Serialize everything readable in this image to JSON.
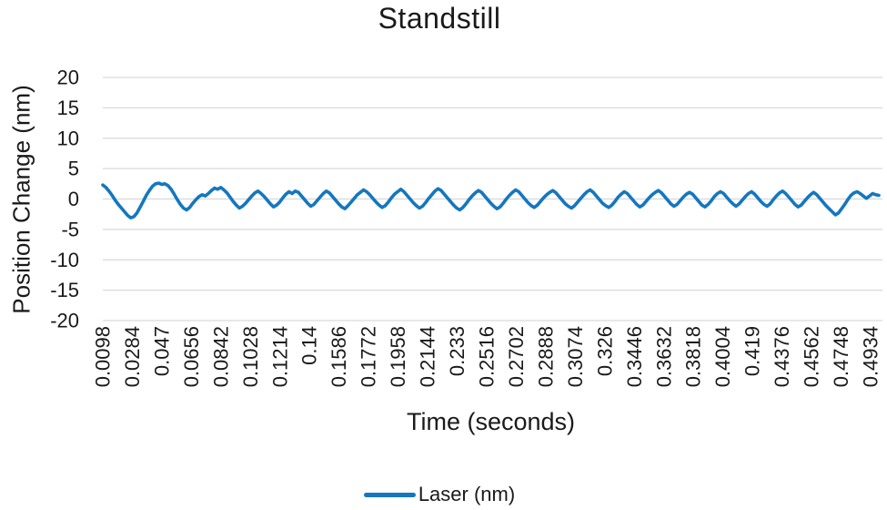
{
  "chart_data": {
    "type": "line",
    "title": "Standstill",
    "xlabel": "Time (seconds)",
    "ylabel": "Position Change (nm)",
    "ylim": [
      -20,
      20
    ],
    "ytick_step": 5,
    "yticks": [
      20,
      15,
      10,
      5,
      0,
      -5,
      -10,
      -15,
      -20
    ],
    "xticks": [
      "0.0098",
      "0.0284",
      "0.047",
      "0.0656",
      "0.0842",
      "0.1028",
      "0.1214",
      "0.14",
      "0.1586",
      "0.1772",
      "0.1958",
      "0.2144",
      "0.233",
      "0.2516",
      "0.2702",
      "0.2888",
      "0.3074",
      "0.326",
      "0.3446",
      "0.3632",
      "0.3818",
      "0.4004",
      "0.419",
      "0.4376",
      "0.4562",
      "0.4748",
      "0.4934"
    ],
    "x_range_seconds": [
      0,
      0.5
    ],
    "grid": "horizontal",
    "grid_color": "#d9d9d9",
    "legend": {
      "position": "bottom",
      "entries": [
        {
          "label": "Laser (nm)",
          "color": "#1577be"
        }
      ]
    },
    "series": [
      {
        "name": "Laser (nm)",
        "color": "#1577be",
        "sample_interval_seconds": 0.002,
        "values": [
          2.3,
          1.9,
          1.3,
          0.6,
          -0.2,
          -0.9,
          -1.5,
          -2.1,
          -2.7,
          -3.1,
          -2.9,
          -2.3,
          -1.4,
          -0.4,
          0.6,
          1.4,
          2.1,
          2.5,
          2.6,
          2.4,
          2.5,
          2.2,
          1.6,
          0.8,
          -0.1,
          -0.9,
          -1.5,
          -1.8,
          -1.4,
          -0.7,
          -0.1,
          0.4,
          0.7,
          0.5,
          0.9,
          1.4,
          1.8,
          1.6,
          1.9,
          1.5,
          1.0,
          0.3,
          -0.4,
          -1.0,
          -1.5,
          -1.2,
          -0.7,
          -0.1,
          0.5,
          1.0,
          1.3,
          0.9,
          0.4,
          -0.2,
          -0.8,
          -1.3,
          -1.0,
          -0.5,
          0.2,
          0.8,
          1.2,
          0.9,
          1.3,
          1.1,
          0.5,
          -0.1,
          -0.7,
          -1.2,
          -0.9,
          -0.3,
          0.3,
          0.9,
          1.3,
          1.0,
          0.4,
          -0.2,
          -0.8,
          -1.3,
          -1.6,
          -1.1,
          -0.5,
          0.1,
          0.7,
          1.1,
          1.5,
          1.2,
          0.7,
          0.1,
          -0.5,
          -1.0,
          -1.4,
          -1.1,
          -0.5,
          0.2,
          0.8,
          1.2,
          1.6,
          1.2,
          0.6,
          0.0,
          -0.6,
          -1.1,
          -1.5,
          -1.2,
          -0.6,
          0.1,
          0.7,
          1.3,
          1.7,
          1.4,
          0.8,
          0.2,
          -0.4,
          -1.0,
          -1.5,
          -1.8,
          -1.4,
          -0.8,
          -0.1,
          0.5,
          1.0,
          1.4,
          1.1,
          0.5,
          -0.1,
          -0.7,
          -1.2,
          -1.6,
          -1.3,
          -0.7,
          0.0,
          0.6,
          1.1,
          1.5,
          1.2,
          0.6,
          0.0,
          -0.6,
          -1.1,
          -1.4,
          -1.0,
          -0.4,
          0.2,
          0.7,
          1.1,
          1.4,
          1.0,
          0.4,
          -0.2,
          -0.8,
          -1.2,
          -1.5,
          -1.1,
          -0.5,
          0.1,
          0.7,
          1.2,
          1.5,
          1.1,
          0.5,
          -0.1,
          -0.7,
          -1.1,
          -1.4,
          -1.0,
          -0.4,
          0.3,
          0.8,
          1.2,
          0.9,
          0.3,
          -0.3,
          -0.9,
          -1.3,
          -1.0,
          -0.4,
          0.2,
          0.7,
          1.1,
          1.4,
          1.0,
          0.4,
          -0.2,
          -0.8,
          -1.2,
          -0.9,
          -0.3,
          0.3,
          0.8,
          1.1,
          0.8,
          0.2,
          -0.4,
          -1.0,
          -1.3,
          -0.9,
          -0.3,
          0.4,
          0.9,
          1.2,
          0.9,
          0.3,
          -0.3,
          -0.8,
          -1.2,
          -0.8,
          -0.2,
          0.4,
          0.9,
          1.2,
          0.8,
          0.2,
          -0.4,
          -0.9,
          -1.2,
          -0.8,
          -0.1,
          0.5,
          1.0,
          1.3,
          0.9,
          0.3,
          -0.3,
          -0.9,
          -1.3,
          -1.0,
          -0.4,
          0.2,
          0.7,
          1.1,
          0.7,
          0.1,
          -0.5,
          -1.1,
          -1.6,
          -2.1,
          -2.6,
          -2.3,
          -1.6,
          -0.9,
          -0.1,
          0.6,
          1.0,
          1.2,
          0.9,
          0.5,
          0.1,
          0.5,
          0.9,
          0.7,
          0.6
        ]
      }
    ]
  },
  "colors": {
    "text": "#1a1a1a",
    "grid": "#d9d9d9",
    "line": "#1577be",
    "background": "#ffffff"
  }
}
